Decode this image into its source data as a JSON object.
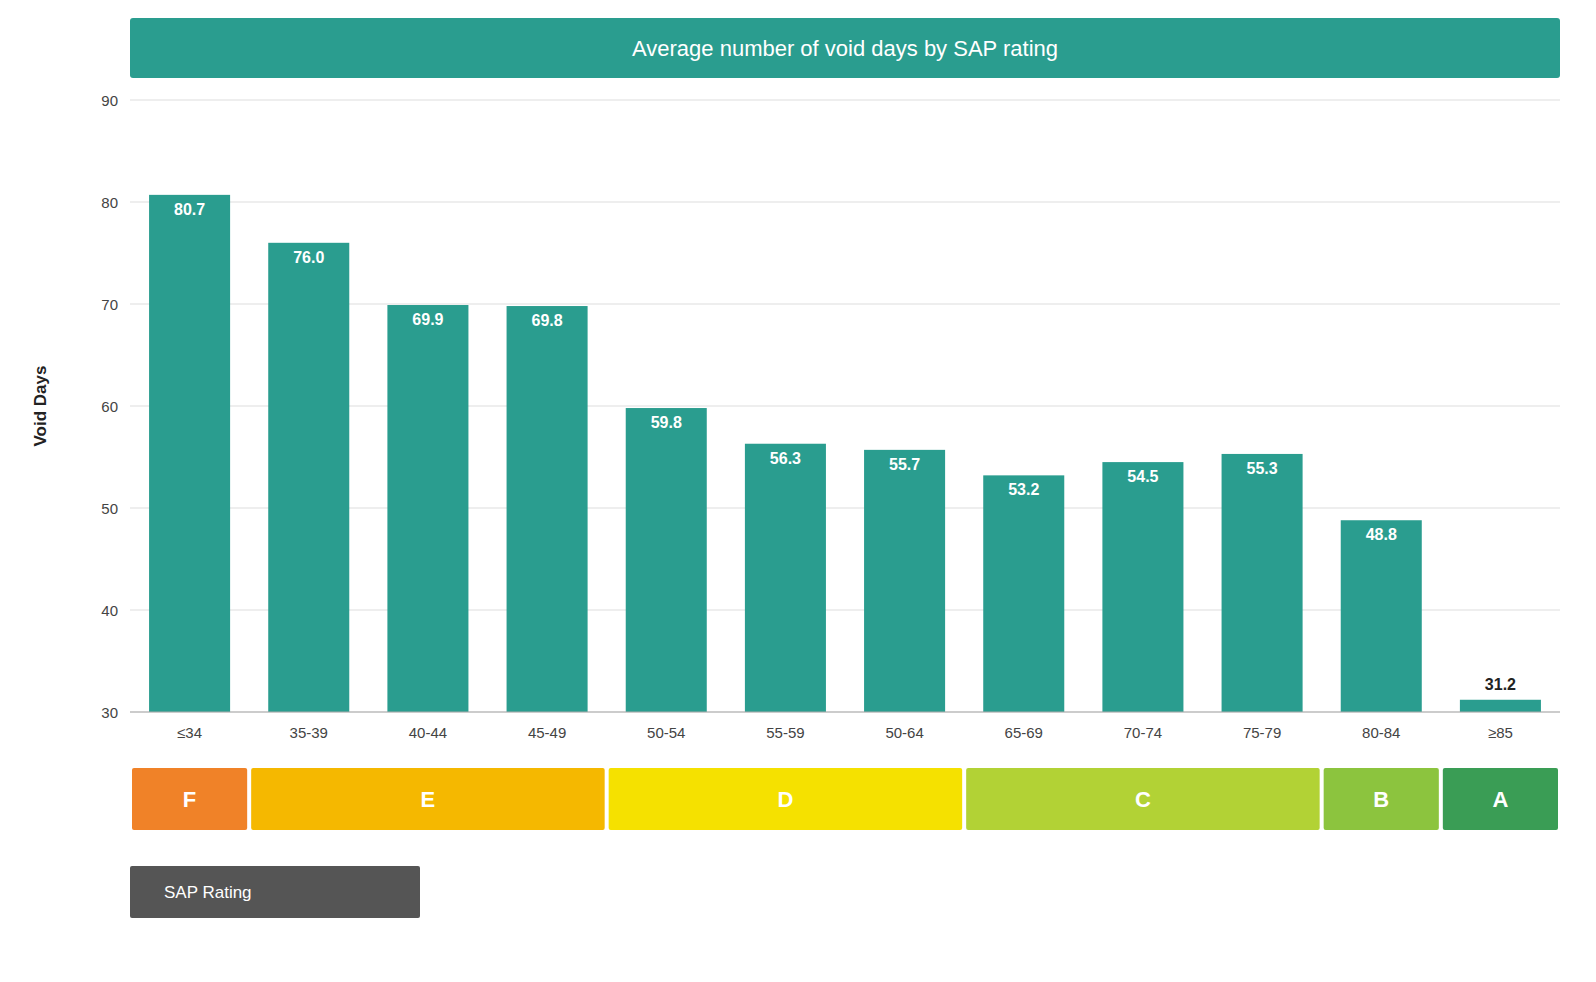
{
  "chart_data": {
    "type": "bar",
    "title": "Average number of void days by SAP rating",
    "y_label": "Void Days",
    "categories": [
      "≤34",
      "35-39",
      "40-44",
      "45-49",
      "50-54",
      "55-59",
      "50-64",
      "65-69",
      "70-74",
      "75-79",
      "80-84",
      "≥85"
    ],
    "values": [
      80.7,
      76.0,
      69.9,
      69.8,
      59.8,
      56.3,
      55.7,
      53.2,
      54.5,
      55.3,
      48.8,
      31.2
    ],
    "value_labels": [
      "80.7",
      "76.0",
      "69.9",
      "69.8",
      "59.8",
      "56.3",
      "55.7",
      "53.2",
      "54.5",
      "55.3",
      "48.8",
      "31.2"
    ],
    "color": "#2a9d8f",
    "ylim": [
      30,
      90
    ],
    "yticks": [
      30,
      40,
      50,
      60,
      70,
      80,
      90
    ],
    "grid": true,
    "data_labels": true,
    "rating_bands": {
      "title": "SAP Rating",
      "bands": [
        {
          "label": "F",
          "start": 0,
          "end": 1,
          "color": "#f08228"
        },
        {
          "label": "E",
          "start": 1,
          "end": 4,
          "color": "#f5b800"
        },
        {
          "label": "D",
          "start": 4,
          "end": 7,
          "color": "#f5e100"
        },
        {
          "label": "C",
          "start": 7,
          "end": 10,
          "color": "#b2d235"
        },
        {
          "label": "B",
          "start": 10,
          "end": 11,
          "color": "#8cc43e"
        },
        {
          "label": "A",
          "start": 11,
          "end": 12,
          "color": "#3a9d55"
        }
      ]
    }
  }
}
